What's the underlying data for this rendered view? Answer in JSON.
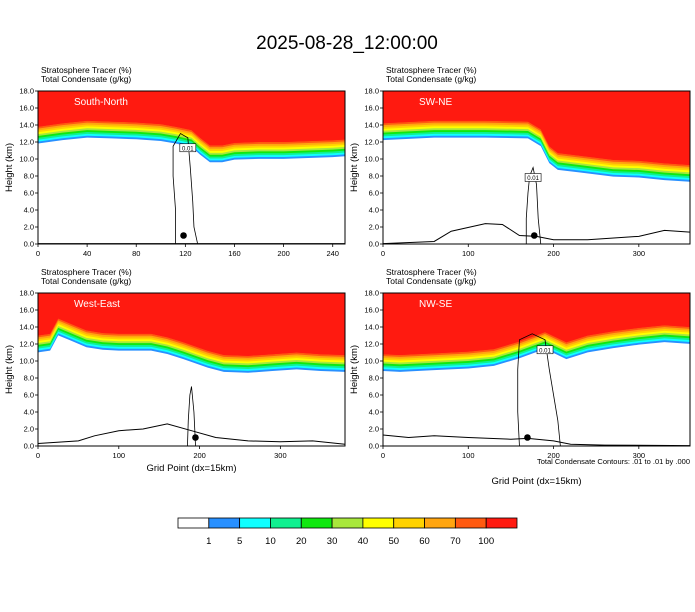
{
  "title": "2025-08-28_12:00:00",
  "colors": {
    "stratosphere": "#ff1a10",
    "band": [
      "#ff5a10",
      "#ffa510",
      "#ffd200",
      "#ffff00",
      "#a8e83c",
      "#10e810",
      "#10f090",
      "#10ffff",
      "#2890ff"
    ],
    "white": "#ffffff",
    "contour": "#000000"
  },
  "chart_data": [
    {
      "type": "heatmap",
      "id": "south-north",
      "title_lines": [
        "Stratosphere Tracer   (%)",
        "Total Condensate   (g/kg)"
      ],
      "label": "South-North",
      "ylabel": "Height (km)",
      "xlabel": "",
      "ylim": [
        0,
        18
      ],
      "yticks": [
        "0.0",
        "2.0",
        "4.0",
        "6.0",
        "8.0",
        "10.0",
        "12.0",
        "14.0",
        "16.0",
        "18.0"
      ],
      "xlim": [
        0,
        250
      ],
      "xticks": [
        0,
        40,
        80,
        120,
        160,
        200,
        240
      ],
      "contour_label": "0.01",
      "tropopause": [
        [
          0,
          13.8
        ],
        [
          20,
          14.2
        ],
        [
          40,
          14.5
        ],
        [
          60,
          14.4
        ],
        [
          80,
          14.3
        ],
        [
          100,
          14.1
        ],
        [
          112,
          13.8
        ],
        [
          125,
          13.4
        ],
        [
          132,
          12.5
        ],
        [
          140,
          11.6
        ],
        [
          150,
          11.6
        ],
        [
          160,
          11.9
        ],
        [
          180,
          12.0
        ],
        [
          200,
          12.0
        ],
        [
          220,
          12.1
        ],
        [
          240,
          12.2
        ],
        [
          250,
          12.3
        ]
      ],
      "terrain": [
        [
          0,
          0.05
        ],
        [
          250,
          0.05
        ]
      ],
      "cloud": [
        [
          112,
          0
        ],
        [
          112,
          4
        ],
        [
          110,
          8
        ],
        [
          110,
          11.5
        ],
        [
          116,
          13
        ],
        [
          122,
          12.5
        ],
        [
          124,
          9
        ],
        [
          126,
          5
        ],
        [
          127,
          2
        ],
        [
          130,
          0
        ]
      ]
    },
    {
      "type": "heatmap",
      "id": "sw-ne",
      "title_lines": [
        "Stratosphere Tracer   (%)",
        "Total Condensate   (g/kg)"
      ],
      "label": "SW-NE",
      "ylabel": "Height (km)",
      "xlabel": "",
      "ylim": [
        0,
        18
      ],
      "yticks": [
        "0.0",
        "2.0",
        "4.0",
        "6.0",
        "8.0",
        "10.0",
        "12.0",
        "14.0",
        "16.0",
        "18.0"
      ],
      "xlim": [
        0,
        360
      ],
      "xticks": [
        0,
        100,
        200,
        300
      ],
      "contour_label": "0.01",
      "tropopause": [
        [
          0,
          14.2
        ],
        [
          60,
          14.5
        ],
        [
          120,
          14.5
        ],
        [
          170,
          14.4
        ],
        [
          185,
          13.5
        ],
        [
          195,
          11.5
        ],
        [
          205,
          10.7
        ],
        [
          230,
          10.4
        ],
        [
          270,
          9.9
        ],
        [
          300,
          9.8
        ],
        [
          330,
          9.5
        ],
        [
          360,
          9.3
        ]
      ],
      "terrain": [
        [
          0,
          0.05
        ],
        [
          60,
          0.3
        ],
        [
          80,
          1.5
        ],
        [
          120,
          2.4
        ],
        [
          140,
          2.3
        ],
        [
          160,
          1.0
        ],
        [
          180,
          0.9
        ],
        [
          200,
          0.5
        ],
        [
          240,
          0.5
        ],
        [
          300,
          0.9
        ],
        [
          330,
          1.6
        ],
        [
          360,
          1.4
        ]
      ],
      "cloud": [
        [
          168,
          0
        ],
        [
          168,
          3
        ],
        [
          170,
          6
        ],
        [
          172,
          8
        ],
        [
          176,
          9
        ],
        [
          180,
          7
        ],
        [
          182,
          3
        ],
        [
          185,
          0
        ]
      ]
    },
    {
      "type": "heatmap",
      "id": "west-east",
      "title_lines": [
        "Stratosphere Tracer   (%)",
        "Total Condensate   (g/kg)"
      ],
      "label": "West-East",
      "ylabel": "Height (km)",
      "xlabel": "Grid Point (dx=15km)",
      "ylim": [
        0,
        18
      ],
      "yticks": [
        "0.0",
        "2.0",
        "4.0",
        "6.0",
        "8.0",
        "10.0",
        "12.0",
        "14.0",
        "16.0",
        "18.0"
      ],
      "xlim": [
        0,
        380
      ],
      "xticks": [
        0,
        100,
        200,
        300
      ],
      "contour_label": "",
      "tropopause": [
        [
          0,
          13.0
        ],
        [
          15,
          13.2
        ],
        [
          25,
          15.0
        ],
        [
          40,
          14.4
        ],
        [
          60,
          13.6
        ],
        [
          80,
          13.3
        ],
        [
          100,
          13.2
        ],
        [
          140,
          13.2
        ],
        [
          160,
          12.8
        ],
        [
          180,
          12.2
        ],
        [
          210,
          11.2
        ],
        [
          230,
          10.7
        ],
        [
          260,
          10.6
        ],
        [
          290,
          10.8
        ],
        [
          320,
          11.0
        ],
        [
          350,
          10.8
        ],
        [
          380,
          10.7
        ]
      ],
      "terrain": [
        [
          0,
          0.3
        ],
        [
          50,
          0.6
        ],
        [
          70,
          1.2
        ],
        [
          100,
          1.8
        ],
        [
          130,
          2.0
        ],
        [
          160,
          2.6
        ],
        [
          190,
          1.8
        ],
        [
          220,
          1.0
        ],
        [
          260,
          0.6
        ],
        [
          300,
          0.5
        ],
        [
          340,
          0.6
        ],
        [
          380,
          0.2
        ]
      ],
      "cloud": [
        [
          185,
          0
        ],
        [
          186,
          3
        ],
        [
          188,
          6
        ],
        [
          190,
          7
        ],
        [
          193,
          4
        ],
        [
          195,
          0
        ]
      ]
    },
    {
      "type": "heatmap",
      "id": "nw-se",
      "title_lines": [
        "Stratosphere Tracer   (%)",
        "Total Condensate   (g/kg)"
      ],
      "label": "NW-SE",
      "ylabel": "Height (km)",
      "xlabel": "Grid Point (dx=15km)",
      "ylim": [
        0,
        18
      ],
      "yticks": [
        "0.0",
        "2.0",
        "4.0",
        "6.0",
        "8.0",
        "10.0",
        "12.0",
        "14.0",
        "16.0",
        "18.0"
      ],
      "xlim": [
        0,
        360
      ],
      "xticks": [
        0,
        100,
        200,
        300
      ],
      "contour_label": "0.01",
      "tropopause": [
        [
          0,
          10.8
        ],
        [
          20,
          10.7
        ],
        [
          60,
          10.9
        ],
        [
          100,
          11.1
        ],
        [
          130,
          11.4
        ],
        [
          160,
          12.3
        ],
        [
          190,
          13.4
        ],
        [
          215,
          12.2
        ],
        [
          240,
          13.0
        ],
        [
          270,
          13.5
        ],
        [
          300,
          13.9
        ],
        [
          330,
          14.2
        ],
        [
          360,
          14.0
        ]
      ],
      "terrain": [
        [
          0,
          1.3
        ],
        [
          30,
          1.0
        ],
        [
          60,
          1.2
        ],
        [
          100,
          1.0
        ],
        [
          150,
          0.8
        ],
        [
          170,
          0.9
        ],
        [
          200,
          0.6
        ],
        [
          220,
          0.2
        ],
        [
          260,
          0.1
        ],
        [
          360,
          0.05
        ]
      ],
      "cloud": [
        [
          160,
          0
        ],
        [
          158,
          4
        ],
        [
          158,
          9
        ],
        [
          160,
          12.5
        ],
        [
          175,
          13.2
        ],
        [
          190,
          12.5
        ],
        [
          195,
          9
        ],
        [
          200,
          6
        ],
        [
          205,
          3
        ],
        [
          208,
          0
        ]
      ],
      "footnote": "Total Condensate Contours: .01 to .01 by .000"
    }
  ],
  "colorbar": {
    "labels": [
      "1",
      "5",
      "10",
      "20",
      "30",
      "40",
      "50",
      "60",
      "70",
      "100"
    ],
    "colors": [
      "#ffffff",
      "#2890ff",
      "#10ffff",
      "#10f090",
      "#10e810",
      "#a8e83c",
      "#ffff00",
      "#ffd200",
      "#ffa510",
      "#ff5a10",
      "#ff1a10"
    ]
  }
}
